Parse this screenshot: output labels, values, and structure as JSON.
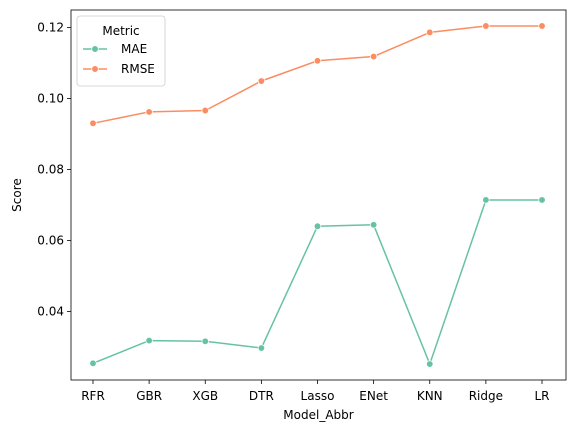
{
  "chart_data": {
    "type": "line",
    "xlabel": "Model_Abbr",
    "ylabel": "Score",
    "categories": [
      "RFR",
      "GBR",
      "XGB",
      "DTR",
      "Lasso",
      "ENet",
      "KNN",
      "Ridge",
      "LR"
    ],
    "ylim": [
      0.0207,
      0.1249
    ],
    "yticks": [
      "0.04",
      "0.06",
      "0.08",
      "0.10",
      "0.12"
    ],
    "legend": {
      "title": "Metric",
      "placement": "top-left"
    },
    "grid": false,
    "series": [
      {
        "name": "MAE",
        "color": "#66c2a5",
        "values": [
          0.0254,
          0.0318,
          0.0316,
          0.0297,
          0.064,
          0.0644,
          0.0252,
          0.0714,
          0.0714
        ]
      },
      {
        "name": "RMSE",
        "color": "#fc8d62",
        "values": [
          0.093,
          0.0962,
          0.0966,
          0.1049,
          0.1106,
          0.1118,
          0.1186,
          0.1204,
          0.1204
        ]
      }
    ]
  }
}
